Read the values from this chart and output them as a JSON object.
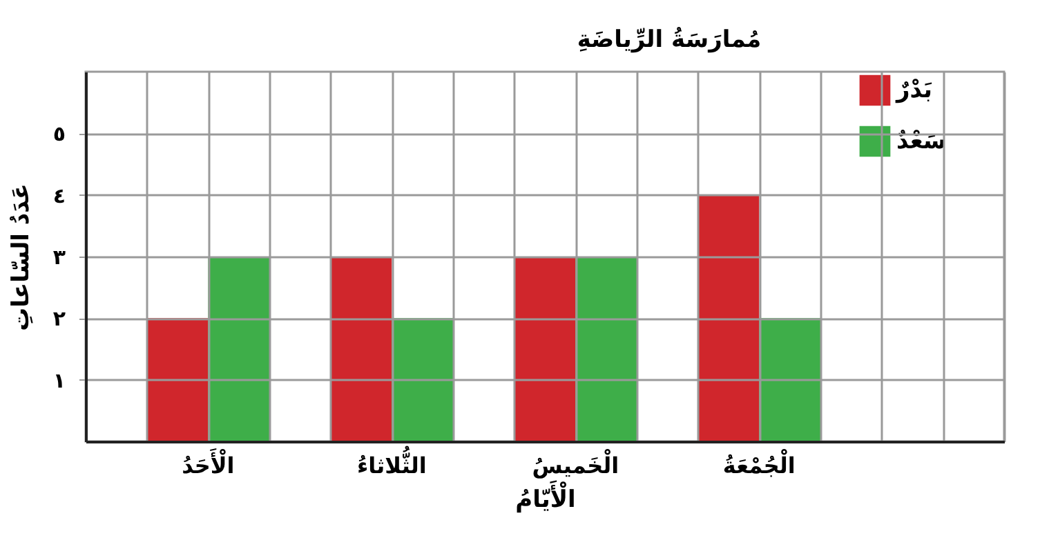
{
  "chart_data": {
    "type": "bar",
    "title": "مُمارَسَةُ الرِّياضَةِ",
    "xlabel": "الْأَيّامُ",
    "ylabel": "عَدَدُ السّاعاتِ",
    "categories": [
      "الْأَحَدُ",
      "الثُّلاثاءُ",
      "الْخَميسُ",
      "الْجُمْعَةُ"
    ],
    "series": [
      {
        "name": "بَدْرٌ",
        "color": "#d0262c",
        "values": [
          2,
          3,
          3,
          4
        ]
      },
      {
        "name": "سَعْدٌ",
        "color": "#3eae49",
        "values": [
          3,
          2,
          3,
          2
        ]
      }
    ],
    "ylim": [
      0,
      6
    ],
    "yticks": [
      {
        "value": 1,
        "label": "١"
      },
      {
        "value": 2,
        "label": "٢"
      },
      {
        "value": 3,
        "label": "٣"
      },
      {
        "value": 4,
        "label": "٤"
      },
      {
        "value": 5,
        "label": "٥"
      }
    ],
    "grid": true,
    "legend": "top right"
  }
}
